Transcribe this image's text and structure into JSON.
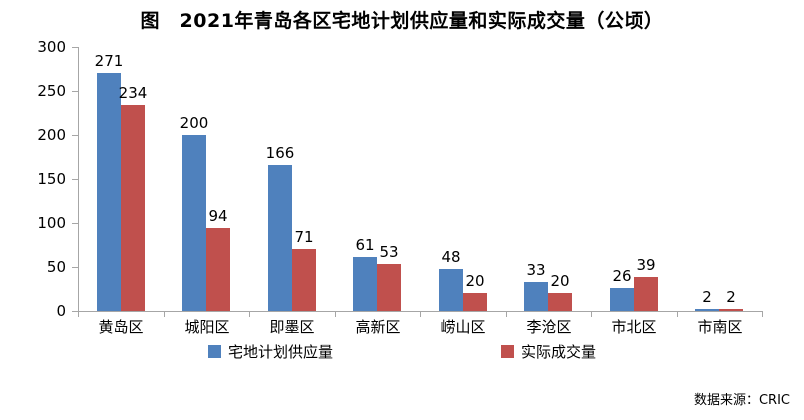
{
  "title": "图　2021年青岛各区宅地计划供应量和实际成交量（公顷）",
  "source_note": "数据来源：CRIC",
  "colors": {
    "series_supply": "#4f81bd",
    "series_deal": "#c0504d",
    "axis": "#a6a6a6",
    "text": "#000000",
    "background": "#ffffff"
  },
  "chart_data": {
    "type": "bar",
    "title": "图　2021年青岛各区宅地计划供应量和实际成交量（公顷）",
    "categories": [
      "黄岛区",
      "城阳区",
      "即墨区",
      "高新区",
      "崂山区",
      "李沧区",
      "市北区",
      "市南区"
    ],
    "series": [
      {
        "name": "宅地计划供应量",
        "color": "#4f81bd",
        "values": [
          271,
          200,
          166,
          61,
          48,
          33,
          26,
          2
        ]
      },
      {
        "name": "实际成交量",
        "color": "#c0504d",
        "values": [
          234,
          94,
          71,
          53,
          20,
          20,
          39,
          2
        ]
      }
    ],
    "ylabel": "",
    "xlabel": "",
    "ylim": [
      0,
      300
    ],
    "yticks": [
      0,
      50,
      100,
      150,
      200,
      250,
      300
    ],
    "grid": false,
    "data_labels": true,
    "legend_position": "bottom",
    "source": "数据来源：CRIC"
  }
}
